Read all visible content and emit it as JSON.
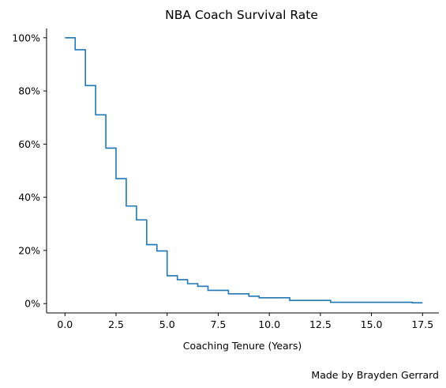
{
  "chart_data": {
    "type": "line",
    "subtype": "step",
    "title": "NBA Coach Survival Rate",
    "xlabel": "Coaching Tenure (Years)",
    "ylabel": "",
    "credit": "Made by Brayden Gerrard",
    "xlim": [
      -0.9,
      18.3
    ],
    "ylim": [
      -0.035,
      1.035
    ],
    "xticks": [
      0.0,
      2.5,
      5.0,
      7.5,
      10.0,
      12.5,
      15.0,
      17.5
    ],
    "xtick_labels": [
      "0.0",
      "2.5",
      "5.0",
      "7.5",
      "10.0",
      "12.5",
      "15.0",
      "17.5"
    ],
    "yticks": [
      0.0,
      0.2,
      0.4,
      0.6,
      0.8,
      1.0
    ],
    "ytick_labels": [
      "0%",
      "20%",
      "40%",
      "60%",
      "80%",
      "100%"
    ],
    "grid": false,
    "line_color": "#1f77b4",
    "series": [
      {
        "x": [
          0.0,
          0.5,
          1.0,
          1.5,
          2.0,
          2.5,
          3.0,
          3.5,
          4.0,
          4.5,
          5.0,
          5.5,
          6.0,
          6.5,
          7.0,
          8.0,
          9.0,
          9.5,
          11.0,
          13.0,
          17.0,
          17.5
        ],
        "y": [
          1.0,
          0.955,
          0.82,
          0.71,
          0.585,
          0.47,
          0.367,
          0.315,
          0.222,
          0.198,
          0.105,
          0.09,
          0.075,
          0.065,
          0.05,
          0.037,
          0.028,
          0.022,
          0.012,
          0.005,
          0.003,
          0.003
        ]
      }
    ]
  }
}
